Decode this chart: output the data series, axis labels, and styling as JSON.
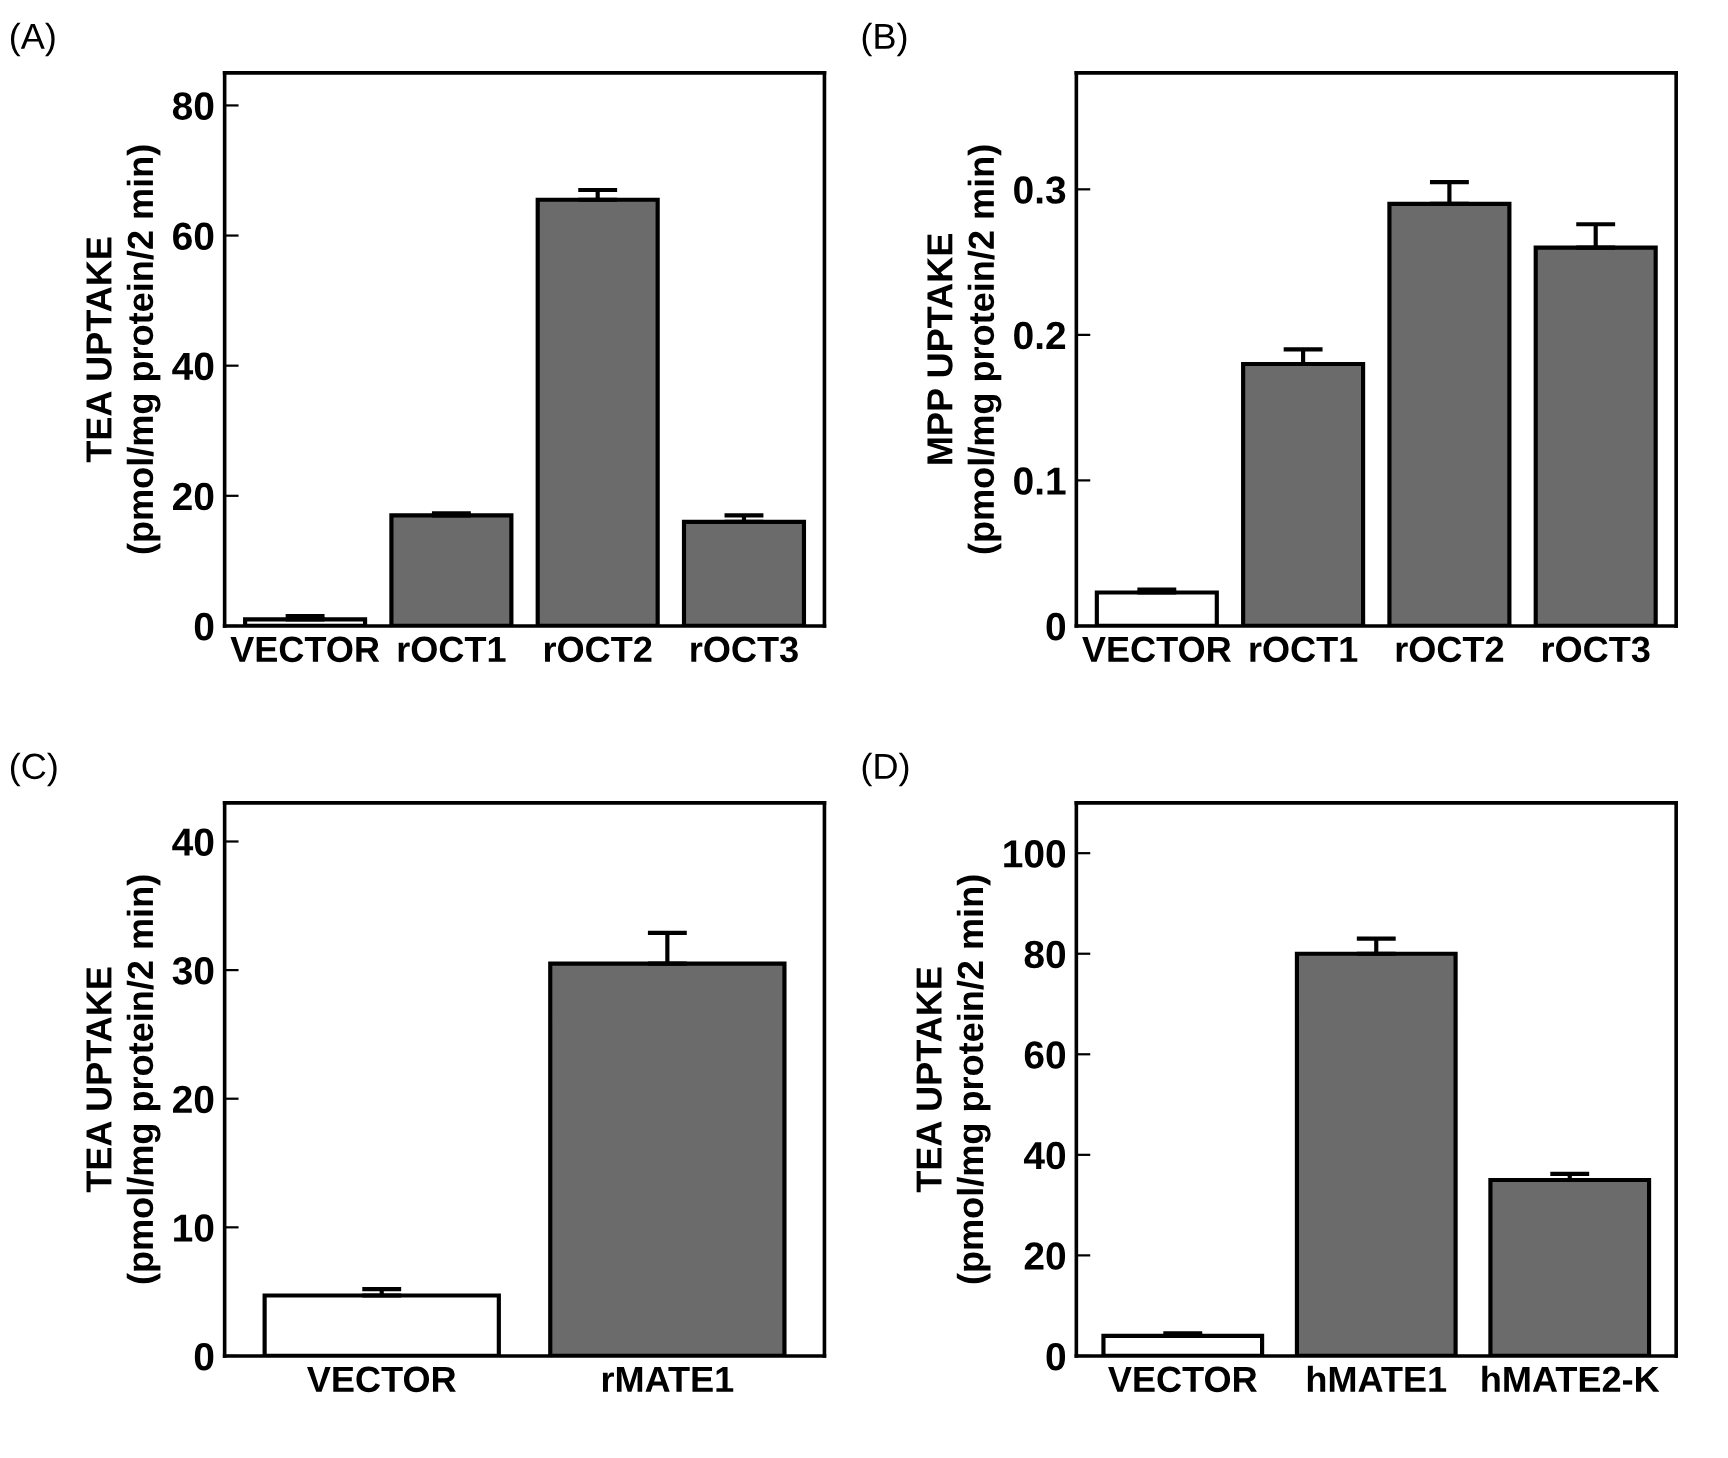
{
  "chart_data": [
    {
      "type": "bar",
      "title": "(A)",
      "ylabel": "TEA UPTAKE\n(pmol/mg protein/2 min)",
      "categories": [
        "VECTOR",
        "rOCT1",
        "rOCT2",
        "rOCT3"
      ],
      "values": [
        1,
        17,
        65.5,
        16
      ],
      "errors": [
        0.5,
        0.3,
        1.5,
        1
      ],
      "colors": [
        "#ffffff",
        "#6b6b6b",
        "#6b6b6b",
        "#6b6b6b"
      ],
      "ylim": [
        0,
        85
      ],
      "yticks": [
        0,
        20,
        40,
        60,
        80
      ],
      "grid": false,
      "legend": false
    },
    {
      "type": "bar",
      "title": "(B)",
      "ylabel": "MPP UPTAKE\n(pmol/mg protein/2 min)",
      "categories": [
        "VECTOR",
        "rOCT1",
        "rOCT2",
        "rOCT3"
      ],
      "values": [
        0.023,
        0.18,
        0.29,
        0.26
      ],
      "errors": [
        0.002,
        0.01,
        0.015,
        0.016
      ],
      "colors": [
        "#ffffff",
        "#6b6b6b",
        "#6b6b6b",
        "#6b6b6b"
      ],
      "ylim": [
        0,
        0.38
      ],
      "yticks": [
        0,
        0.1,
        0.2,
        0.3
      ],
      "grid": false,
      "legend": false
    },
    {
      "type": "bar",
      "title": "(C)",
      "ylabel": "TEA UPTAKE\n(pmol/mg protein/2 min)",
      "categories": [
        "VECTOR",
        "rMATE1"
      ],
      "values": [
        4.7,
        30.5
      ],
      "errors": [
        0.5,
        2.4
      ],
      "colors": [
        "#ffffff",
        "#6b6b6b"
      ],
      "ylim": [
        0,
        43
      ],
      "yticks": [
        0,
        10,
        20,
        30,
        40
      ],
      "grid": false,
      "legend": false
    },
    {
      "type": "bar",
      "title": "(D)",
      "ylabel": "TEA UPTAKE\n(pmol/mg protein/2 min)",
      "categories": [
        "VECTOR",
        "hMATE1",
        "hMATE2-K"
      ],
      "values": [
        4,
        80,
        35
      ],
      "errors": [
        0.5,
        3,
        1.2
      ],
      "colors": [
        "#ffffff",
        "#6b6b6b",
        "#6b6b6b"
      ],
      "ylim": [
        0,
        110
      ],
      "yticks": [
        0,
        20,
        40,
        60,
        80,
        100
      ],
      "grid": false,
      "legend": false
    }
  ]
}
